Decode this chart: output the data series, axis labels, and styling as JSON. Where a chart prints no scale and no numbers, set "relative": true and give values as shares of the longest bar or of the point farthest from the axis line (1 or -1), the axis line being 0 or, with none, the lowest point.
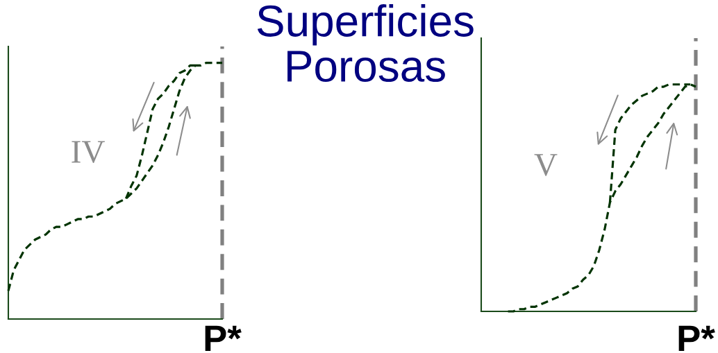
{
  "chart_data": [
    {
      "type": "line",
      "relative": true,
      "line_style": "dashed",
      "xlabel": "P*",
      "categories": [
        null,
        null,
        null,
        null,
        null,
        null,
        null,
        null,
        null,
        null,
        null,
        null,
        null,
        null,
        null,
        null,
        null,
        null,
        null,
        null,
        null,
        null,
        null,
        null,
        null,
        null,
        null,
        null,
        null,
        null,
        null,
        null,
        null,
        null,
        null,
        null,
        null,
        null,
        null,
        null,
        null
      ],
      "series": [
        {
          "color": "#003300",
          "values": [
            0.11,
            0.19,
            0.23,
            0.27,
            0.29,
            0.31,
            0.32,
            0.33,
            0.35,
            0.36,
            0.36,
            0.37,
            0.38,
            0.39,
            0.39,
            0.4,
            0.4,
            0.41,
            0.42,
            0.43,
            0.45,
            0.46,
            0.47,
            0.49,
            0.51,
            0.54,
            0.57,
            0.6,
            0.64,
            0.69,
            0.75,
            0.82,
            0.89,
            0.94,
            0.97,
            0.99,
            0.99,
            1.0,
            1.0,
            1.0,
            1.0
          ]
        },
        {
          "color": "#003300",
          "values": [
            null,
            null,
            null,
            null,
            null,
            null,
            null,
            null,
            null,
            null,
            null,
            null,
            null,
            null,
            null,
            null,
            null,
            null,
            null,
            null,
            null,
            null,
            0.47,
            0.52,
            0.56,
            0.64,
            0.73,
            0.82,
            0.86,
            0.88,
            0.91,
            0.93,
            0.96,
            0.97,
            0.99,
            0.99,
            null,
            null,
            null,
            null,
            null
          ]
        }
      ],
      "annotations": [
        "IV"
      ]
    },
    {
      "type": "line",
      "title": "Superficies Porosas",
      "relative": true,
      "line_style": "dashed",
      "xlabel": "P*",
      "categories": [
        null,
        null,
        null,
        null,
        null,
        null,
        null,
        null,
        null,
        null,
        null,
        null,
        null,
        null,
        null,
        null,
        null,
        null,
        null,
        null,
        null,
        null,
        null,
        null,
        null,
        null,
        null,
        null,
        null,
        null,
        null,
        null,
        null,
        null,
        null,
        null,
        null,
        null,
        null,
        null,
        null
      ],
      "series": [
        {
          "color": "#003300",
          "values": [
            null,
            null,
            null,
            null,
            null,
            0.0,
            0.0,
            0.01,
            0.01,
            0.02,
            0.02,
            0.03,
            0.04,
            0.05,
            0.06,
            0.07,
            0.08,
            0.1,
            0.11,
            0.14,
            0.16,
            0.2,
            0.27,
            0.36,
            0.48,
            0.53,
            0.56,
            0.6,
            0.64,
            0.68,
            0.73,
            0.77,
            0.8,
            0.83,
            0.87,
            0.9,
            0.93,
            0.96,
            0.99,
            1.0,
            0.99
          ]
        },
        {
          "color": "#003300",
          "values": [
            null,
            null,
            null,
            null,
            null,
            null,
            null,
            null,
            null,
            null,
            null,
            null,
            null,
            null,
            null,
            null,
            null,
            null,
            null,
            null,
            null,
            null,
            null,
            null,
            0.48,
            0.8,
            0.85,
            0.88,
            0.91,
            0.93,
            0.95,
            0.96,
            0.97,
            0.99,
            0.99,
            1.0,
            1.0,
            1.0,
            1.0,
            1.0,
            null
          ]
        }
      ],
      "annotations": [
        "V"
      ]
    }
  ]
}
